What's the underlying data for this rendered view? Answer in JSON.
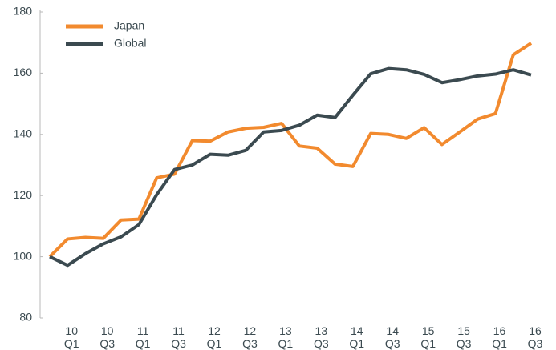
{
  "chart_data": {
    "type": "line",
    "categories": [
      null,
      "10 Q1",
      null,
      "10 Q3",
      null,
      "11 Q1",
      null,
      "11 Q3",
      null,
      "12 Q1",
      null,
      "12 Q3",
      null,
      "13 Q1",
      null,
      "13 Q3",
      null,
      "14 Q1",
      null,
      "14 Q3",
      null,
      "15 Q1",
      null,
      "15 Q3",
      null,
      "16 Q1",
      null,
      "16 Q3"
    ],
    "series": [
      {
        "name": "Japan",
        "color": "#f28a2e",
        "values": [
          100,
          105.8,
          106.3,
          106,
          112,
          112.3,
          125.8,
          127,
          138,
          137.8,
          140.8,
          142,
          142.3,
          143.6,
          136.2,
          135.5,
          130.3,
          129.5,
          140.3,
          140,
          138.7,
          142.2,
          136.7,
          140.8,
          145,
          146.8,
          166,
          169.8
        ]
      },
      {
        "name": "Global",
        "color": "#3b4a50",
        "values": [
          100,
          97.2,
          101,
          104.2,
          106.5,
          110.5,
          120.3,
          128.5,
          130,
          133.5,
          133.2,
          134.8,
          140.8,
          141.3,
          143,
          146.3,
          145.5,
          152.8,
          159.8,
          161.5,
          161.1,
          159.6,
          156.9,
          157.9,
          159.1,
          159.7,
          161.1,
          159.4
        ]
      }
    ],
    "ylim": [
      80,
      180
    ],
    "yticks": [
      80,
      100,
      120,
      140,
      160,
      180
    ],
    "legend": "upper left",
    "grid": false
  }
}
